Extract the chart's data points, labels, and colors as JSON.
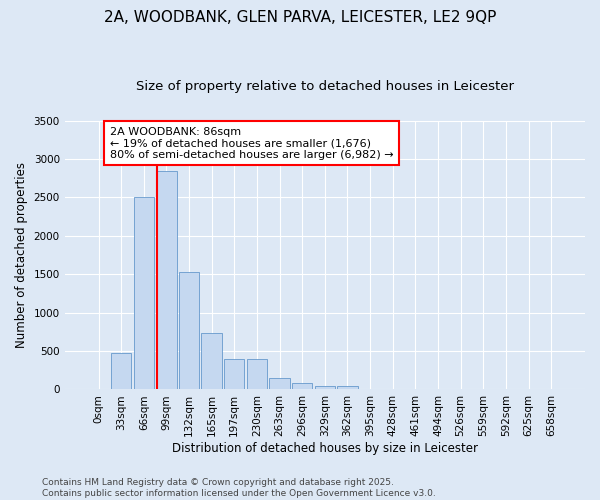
{
  "title_line1": "2A, WOODBANK, GLEN PARVA, LEICESTER, LE2 9QP",
  "title_line2": "Size of property relative to detached houses in Leicester",
  "xlabel": "Distribution of detached houses by size in Leicester",
  "ylabel": "Number of detached properties",
  "bar_labels": [
    "0sqm",
    "33sqm",
    "66sqm",
    "99sqm",
    "132sqm",
    "165sqm",
    "197sqm",
    "230sqm",
    "263sqm",
    "296sqm",
    "329sqm",
    "362sqm",
    "395sqm",
    "428sqm",
    "461sqm",
    "494sqm",
    "526sqm",
    "559sqm",
    "592sqm",
    "625sqm",
    "658sqm"
  ],
  "bar_values": [
    10,
    475,
    2510,
    2840,
    1530,
    730,
    390,
    390,
    150,
    80,
    50,
    50,
    10,
    5,
    3,
    2,
    2,
    2,
    2,
    2,
    2
  ],
  "bar_color": "#c5d8f0",
  "bar_edge_color": "#6699cc",
  "vline_x": 2.606,
  "vline_color": "red",
  "annotation_text": "2A WOODBANK: 86sqm\n← 19% of detached houses are smaller (1,676)\n80% of semi-detached houses are larger (6,982) →",
  "annotation_box_color": "white",
  "annotation_box_edge_color": "red",
  "ylim": [
    0,
    3500
  ],
  "yticks": [
    0,
    500,
    1000,
    1500,
    2000,
    2500,
    3000,
    3500
  ],
  "background_color": "#dde8f5",
  "plot_background_color": "#dde8f5",
  "grid_color": "white",
  "footer_text": "Contains HM Land Registry data © Crown copyright and database right 2025.\nContains public sector information licensed under the Open Government Licence v3.0.",
  "title_fontsize": 11,
  "subtitle_fontsize": 9.5,
  "axis_label_fontsize": 8.5,
  "tick_fontsize": 7.5,
  "footer_fontsize": 6.5,
  "annotation_fontsize": 8
}
